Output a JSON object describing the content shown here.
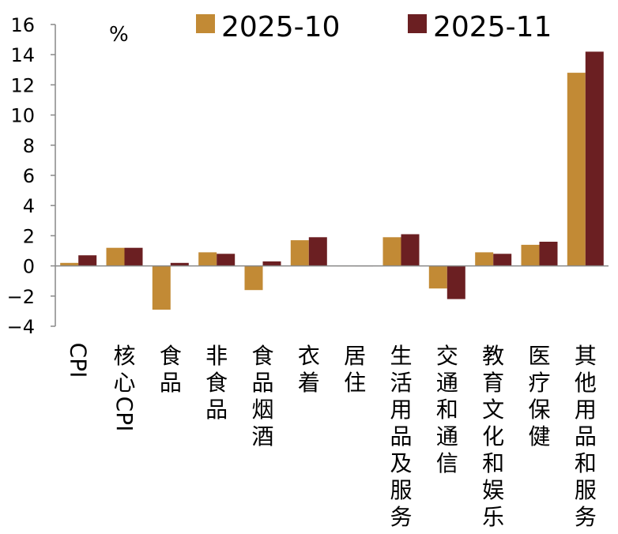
{
  "chart_data": {
    "type": "bar",
    "title": "",
    "unit": "%",
    "xlabel": "",
    "ylabel": "%",
    "ylim": [
      -4,
      16
    ],
    "yticks": [
      -4,
      -2,
      0,
      2,
      4,
      6,
      8,
      10,
      12,
      14,
      16
    ],
    "grid": false,
    "legend_position": "top",
    "categories": [
      "CPI",
      "核心CPI",
      "食品",
      "非食品",
      "食品烟酒",
      "衣着",
      "居住",
      "生活用品及服务",
      "交通和通信",
      "教育文化和娱乐",
      "医疗保健",
      "其他用品和服务"
    ],
    "series": [
      {
        "name": "2025-10",
        "color": "#C28A35",
        "values": [
          0.2,
          1.2,
          -2.9,
          0.9,
          -1.6,
          1.7,
          0.0,
          1.9,
          -1.5,
          0.9,
          1.4,
          12.8
        ]
      },
      {
        "name": "2025-11",
        "color": "#6B1F22",
        "values": [
          0.7,
          1.2,
          0.2,
          0.8,
          0.3,
          1.9,
          0.0,
          2.1,
          -2.2,
          0.8,
          1.6,
          14.2
        ]
      }
    ]
  }
}
